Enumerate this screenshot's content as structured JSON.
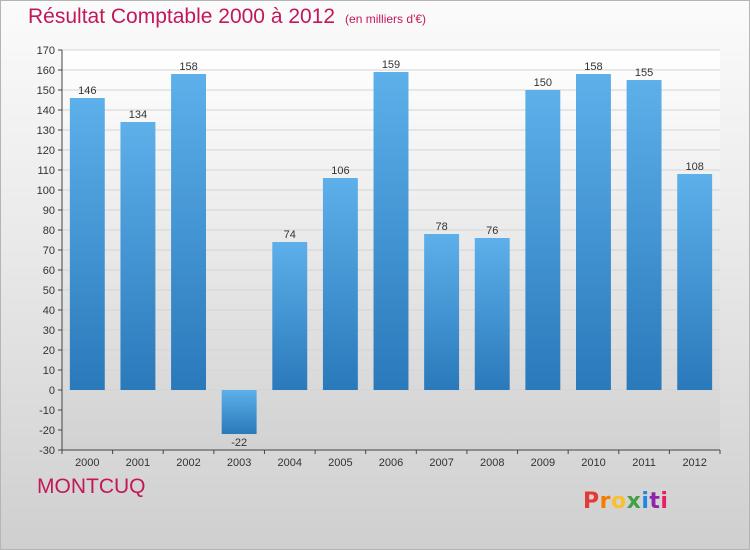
{
  "page": {
    "title": "Résultat Comptable 2000 à 2012",
    "subtitle": "(en milliers d'€)",
    "region": "MONTCUQ",
    "logo_text": "Proxiti",
    "logo_colors": [
      "#e53935",
      "#f57c00",
      "#fbc02d",
      "#43a047",
      "#1e88e5",
      "#8e24aa",
      "#e91e63"
    ]
  },
  "chart_data": {
    "type": "bar",
    "categories": [
      "2000",
      "2001",
      "2002",
      "2003",
      "2004",
      "2005",
      "2006",
      "2007",
      "2008",
      "2009",
      "2010",
      "2011",
      "2012"
    ],
    "values": [
      146,
      134,
      158,
      -22,
      74,
      106,
      159,
      78,
      76,
      150,
      158,
      155,
      108
    ],
    "ylim": [
      -30,
      170
    ],
    "yticks": [
      170,
      160,
      150,
      140,
      130,
      120,
      110,
      100,
      90,
      80,
      70,
      60,
      50,
      40,
      30,
      20,
      10,
      0,
      -10,
      -20,
      -30
    ],
    "grid": true,
    "bar_color": "#4a9fd9",
    "title": "Résultat Comptable 2000 à 2012",
    "subtitle": "(en milliers d'€)",
    "xlabel": "",
    "ylabel": ""
  }
}
